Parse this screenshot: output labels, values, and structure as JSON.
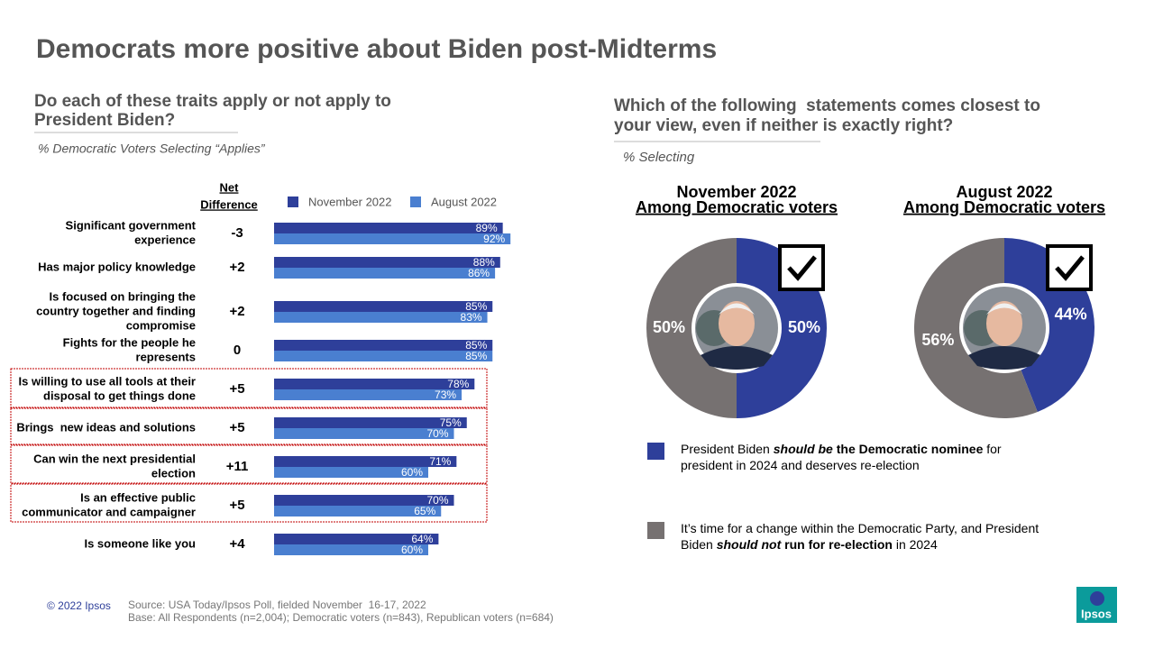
{
  "title": "Democrats more positive about Biden post-Midterms",
  "left": {
    "question": [
      "Do each of these traits apply or not apply to",
      "President Biden?"
    ],
    "subtitle": "% Democratic Voters Selecting “Applies”"
  },
  "right": {
    "question": [
      "Which of the following  statements comes closest to",
      "your view, even if neither is exactly right?"
    ],
    "subtitle": "% Selecting"
  },
  "chart_data": [
    {
      "type": "hbar",
      "categories": [
        [
          "Significant government",
          "experience"
        ],
        [
          "Has major policy knowledge"
        ],
        [
          "Is focused on bringing the",
          "country together and finding",
          "compromise"
        ],
        [
          "Fights for the people he",
          "represents"
        ],
        [
          "Is willing to use all tools at their",
          "disposal to get things done"
        ],
        [
          "Brings  new ideas and solutions"
        ],
        [
          "Can win the next presidential",
          "election"
        ],
        [
          "Is an effective public",
          "communicator and campaigner"
        ],
        [
          "Is someone like you"
        ]
      ],
      "series": [
        {
          "name": "November 2022",
          "color": "#2e3f9a",
          "values": [
            89,
            88,
            85,
            85,
            78,
            75,
            71,
            70,
            64
          ],
          "value_labels": [
            "89%",
            "88%",
            "85%",
            "85%",
            "78%",
            "75%",
            "71%",
            "70%",
            "64%"
          ]
        },
        {
          "name": "August 2022",
          "color": "#4a7fd0",
          "values": [
            92,
            86,
            83,
            85,
            73,
            70,
            60,
            65,
            60
          ],
          "value_labels": [
            "92%",
            "86%",
            "83%",
            "85%",
            "73%",
            "70%",
            "60%",
            "65%",
            "60%"
          ]
        }
      ],
      "net_difference": {
        "label": [
          "Net",
          "Difference"
        ],
        "values": [
          -3,
          2,
          2,
          0,
          5,
          5,
          11,
          5,
          4
        ],
        "value_labels": [
          "-3",
          "+2",
          "+2",
          "0",
          "+5",
          "+5",
          "+11",
          "+5",
          "+4"
        ]
      }
    },
    {
      "type": "donut",
      "title": "November 2022",
      "subtitle": "Among Democratic voters",
      "values": [
        50,
        50
      ],
      "value_labels": [
        "50%",
        "50%"
      ],
      "colors": [
        "#2e3f9a",
        "#767171"
      ]
    },
    {
      "type": "donut",
      "title": "August 2022",
      "subtitle": "Among Democratic voters",
      "values": [
        44,
        56
      ],
      "value_labels": [
        "44%",
        "56%"
      ],
      "colors": [
        "#2e3f9a",
        "#767171"
      ]
    }
  ],
  "legend": [
    {
      "lines": [
        [
          {
            "text": "President Biden ",
            "style": "normal"
          },
          {
            "text": "should be",
            "style": "bold-italic"
          },
          {
            "text": " the Democratic nominee",
            "style": "bold"
          },
          {
            "text": " for",
            "style": "normal"
          }
        ],
        [
          {
            "text": "president in 2024 and deserves re-election",
            "style": "normal"
          }
        ]
      ]
    },
    {
      "lines": [
        [
          {
            "text": "It’s time for a change within the Democratic Party, and President",
            "style": "normal"
          }
        ],
        [
          {
            "text": "Biden ",
            "style": "normal"
          },
          {
            "text": "should not",
            "style": "bold-italic"
          },
          {
            "text": " run for re-election",
            "style": "bold"
          },
          {
            "text": " in 2024",
            "style": "normal"
          }
        ]
      ]
    }
  ],
  "footer": {
    "copyright": "© 2022 Ipsos",
    "source": "Source: USA Today/Ipsos Poll, fielded November  16-17, 2022",
    "base": "Base: All Respondents (n=2,004); Democratic voters (n=843), Republican voters (n=684)",
    "logo": "Ipsos"
  }
}
